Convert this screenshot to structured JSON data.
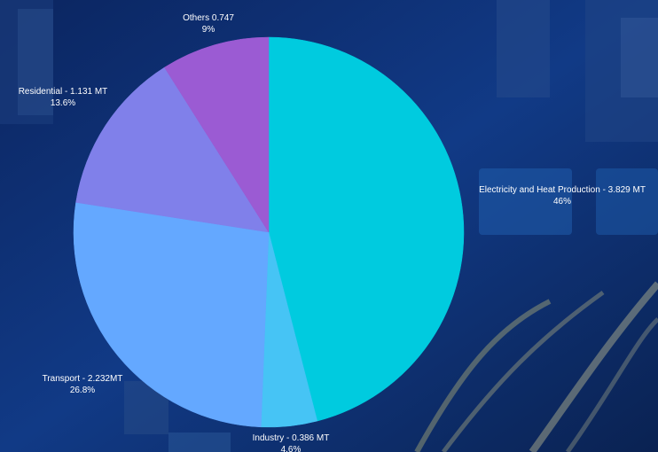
{
  "chart_data": {
    "type": "pie",
    "slices": [
      {
        "name": "Electricity and Heat Production",
        "value_text": "3.829 MT",
        "label": "Electricity and Heat Production - 3.829 MT",
        "percent_label": "46%",
        "value": 3.829,
        "color": "#00cbdf"
      },
      {
        "name": "Industry",
        "value_text": "0.386 MT",
        "label": "Industry - 0.386 MT",
        "percent_label": "4.6%",
        "value": 0.386,
        "color": "#46c4f5"
      },
      {
        "name": "Transport",
        "value_text": "2.232MT",
        "label": "Transport - 2.232MT",
        "percent_label": "26.8%",
        "value": 2.232,
        "color": "#64a8ff"
      },
      {
        "name": "Residential",
        "value_text": "1.131 MT",
        "label": "Residential - 1.131 MT",
        "percent_label": "13.6%",
        "value": 1.131,
        "color": "#8080ea"
      },
      {
        "name": "Others",
        "value_text": "0.747",
        "label": "Others 0.747",
        "percent_label": "9%",
        "value": 0.747,
        "color": "#9b5bd3"
      }
    ],
    "start": "12 o'clock",
    "direction": "clockwise",
    "legend": "none"
  },
  "background": {
    "description_colors": [
      "#0d2a63",
      "#123a80",
      "#1c4c9c"
    ]
  }
}
